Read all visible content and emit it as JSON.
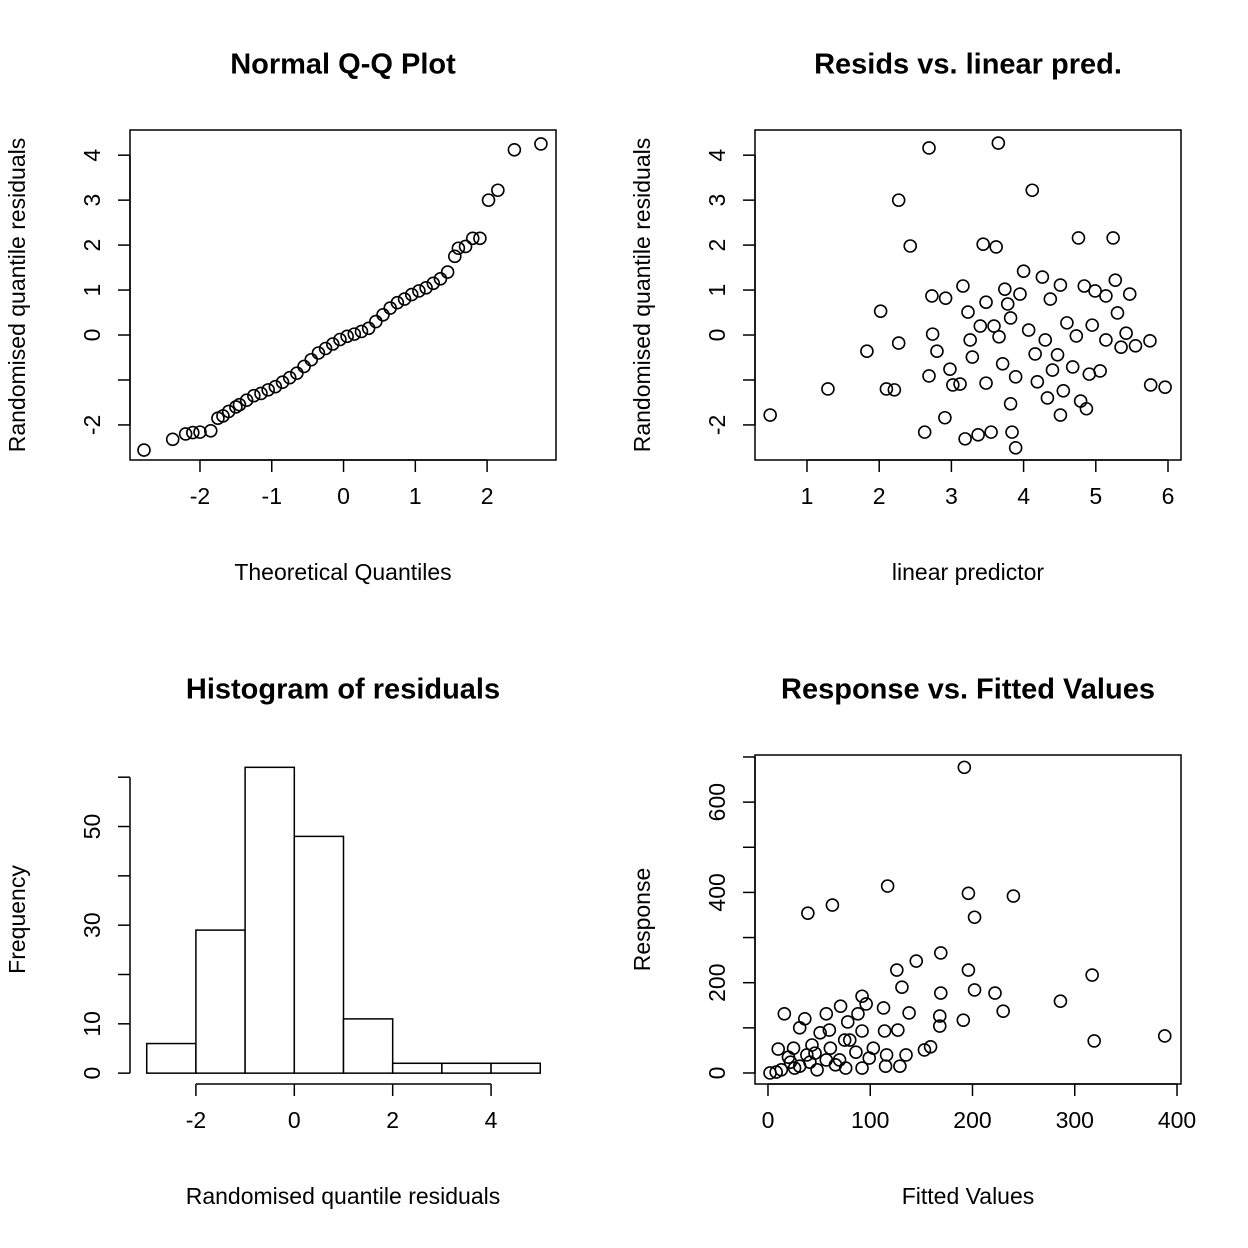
{
  "chart_data": [
    {
      "type": "scatter",
      "title": "Normal Q-Q Plot",
      "x_label": "Theoretical Quantiles",
      "y_label": "Randomised quantile residuals",
      "box": true,
      "x": [
        -2.78,
        -2.38,
        -2.2,
        -2.1,
        -2.0,
        -1.85,
        -1.75,
        -1.68,
        -1.6,
        -1.5,
        -1.45,
        -1.35,
        -1.25,
        -1.15,
        -1.05,
        -0.95,
        -0.85,
        -0.75,
        -0.65,
        -0.55,
        -0.45,
        -0.35,
        -0.25,
        -0.15,
        -0.05,
        0.05,
        0.15,
        0.25,
        0.35,
        0.45,
        0.55,
        0.65,
        0.75,
        0.85,
        0.95,
        1.05,
        1.15,
        1.25,
        1.35,
        1.45,
        1.55,
        1.6,
        1.7,
        1.8,
        1.9,
        2.02,
        2.15,
        2.38,
        2.75
      ],
      "values": [
        -2.56,
        -2.32,
        -2.2,
        -2.17,
        -2.16,
        -2.13,
        -1.85,
        -1.8,
        -1.7,
        -1.6,
        -1.55,
        -1.45,
        -1.35,
        -1.3,
        -1.22,
        -1.15,
        -1.05,
        -0.95,
        -0.85,
        -0.7,
        -0.55,
        -0.4,
        -0.3,
        -0.2,
        -0.1,
        -0.03,
        0.02,
        0.08,
        0.15,
        0.3,
        0.45,
        0.6,
        0.72,
        0.8,
        0.9,
        0.98,
        1.05,
        1.15,
        1.25,
        1.4,
        1.75,
        1.93,
        1.97,
        2.15,
        2.15,
        3.0,
        3.22,
        4.12,
        4.25
      ],
      "xlim": [
        -2.975,
        2.96
      ],
      "ylim": [
        -2.78,
        4.56
      ],
      "xticks": [
        -2,
        -1,
        0,
        1,
        2
      ],
      "yticks": [
        -2,
        {
          "value": -1,
          "label": null
        },
        0,
        1,
        2,
        3,
        4
      ]
    },
    {
      "type": "scatter",
      "title": "Resids vs. linear pred.",
      "x_label": "linear predictor",
      "y_label": "Randomised quantile residuals",
      "box": true,
      "x": [
        0.49,
        1.29,
        1.83,
        2.02,
        2.1,
        2.21,
        2.27,
        2.27,
        2.43,
        2.69,
        2.73,
        2.63,
        2.69,
        2.74,
        2.8,
        2.91,
        2.92,
        2.98,
        3.02,
        3.12,
        3.16,
        3.19,
        3.23,
        3.26,
        3.29,
        3.37,
        3.4,
        3.44,
        3.48,
        3.48,
        3.55,
        3.59,
        3.65,
        3.62,
        3.66,
        3.71,
        3.74,
        3.78,
        3.82,
        3.84,
        3.89,
        3.82,
        3.89,
        3.95,
        4.0,
        4.07,
        4.12,
        4.16,
        4.19,
        4.26,
        4.3,
        4.33,
        4.37,
        4.4,
        4.47,
        4.51,
        4.55,
        4.51,
        4.6,
        4.68,
        4.76,
        4.73,
        4.79,
        4.84,
        4.87,
        4.91,
        4.95,
        4.99,
        5.06,
        5.14,
        5.14,
        5.24,
        5.27,
        5.3,
        5.35,
        5.42,
        5.47,
        5.55,
        5.75,
        5.76,
        5.96
      ],
      "values": [
        -1.78,
        -1.2,
        -0.36,
        0.53,
        -1.2,
        -1.22,
        -0.18,
        3.0,
        1.98,
        4.16,
        0.87,
        -2.16,
        -0.91,
        0.02,
        -0.36,
        -1.84,
        0.82,
        -0.76,
        -1.11,
        -1.09,
        1.09,
        -2.31,
        0.51,
        -0.11,
        -0.49,
        -2.22,
        0.2,
        2.02,
        0.73,
        -1.07,
        -2.16,
        0.2,
        4.27,
        1.96,
        -0.04,
        -0.64,
        1.02,
        0.69,
        0.38,
        -2.16,
        -2.51,
        -1.53,
        -0.93,
        0.91,
        1.42,
        0.11,
        3.22,
        -0.42,
        -1.04,
        1.29,
        -0.11,
        -1.4,
        0.8,
        -0.78,
        -0.44,
        -1.78,
        -1.24,
        1.11,
        0.27,
        -0.71,
        2.16,
        -0.02,
        -1.47,
        1.09,
        -1.64,
        -0.87,
        0.22,
        0.98,
        -0.8,
        0.87,
        -0.11,
        2.16,
        1.22,
        0.49,
        -0.27,
        0.04,
        0.91,
        -0.24,
        -0.13,
        -1.11,
        -1.16
      ],
      "xlim": [
        0.28,
        6.18
      ],
      "ylim": [
        -2.78,
        4.56
      ],
      "xticks": [
        1,
        2,
        3,
        4,
        5,
        6
      ],
      "yticks": [
        -2,
        {
          "value": -1,
          "label": null
        },
        0,
        1,
        2,
        3,
        4
      ]
    },
    {
      "type": "histogram",
      "title": "Histogram of residuals",
      "x_label": "Randomised quantile residuals",
      "y_label": "Frequency",
      "box": false,
      "bins": [
        -3,
        -2,
        -1,
        0,
        1,
        2,
        3,
        4,
        5
      ],
      "values": [
        6,
        29,
        62,
        48,
        11,
        2,
        2,
        2
      ],
      "xlim": [
        -3.34,
        5.32
      ],
      "ylim": [
        -2.2,
        64.5
      ],
      "xticks": [
        -2,
        0,
        2,
        4
      ],
      "yticks": [
        0,
        10,
        {
          "value": 20,
          "label": null
        },
        30,
        {
          "value": 40,
          "label": null
        },
        50,
        {
          "value": 60,
          "label": null
        }
      ]
    },
    {
      "type": "scatter",
      "title": "Response vs. Fitted Values",
      "x_label": "Fitted Values",
      "y_label": "Response",
      "box": true,
      "x": [
        192,
        117,
        196,
        240,
        39,
        63,
        202,
        169,
        145,
        126,
        196,
        317,
        286,
        202,
        222,
        169,
        131,
        230,
        92,
        96,
        71,
        191,
        168,
        168,
        138,
        113,
        88,
        57,
        16,
        388,
        319,
        127,
        114,
        92,
        78,
        60,
        31,
        36,
        10,
        159,
        153,
        135,
        116,
        99,
        80,
        51,
        43,
        25,
        20,
        70,
        129,
        92,
        115,
        41,
        48,
        26,
        13,
        2,
        8,
        31,
        57,
        86,
        76,
        61,
        38,
        22,
        46,
        66,
        103,
        75
      ],
      "values": [
        677,
        414,
        398,
        392,
        354,
        372,
        345,
        266,
        248,
        228,
        228,
        217,
        159,
        184,
        177,
        177,
        190,
        137,
        170,
        153,
        148,
        117,
        126,
        104,
        133,
        144,
        131,
        131,
        131,
        82,
        71,
        95,
        93,
        93,
        113,
        95,
        100,
        120,
        53,
        58,
        51,
        40,
        40,
        33,
        73,
        89,
        62,
        55,
        35,
        29,
        15,
        11,
        15,
        24,
        7,
        11,
        7,
        0,
        2,
        15,
        29,
        46,
        11,
        55,
        40,
        24,
        44,
        18,
        55,
        73
      ],
      "xlim": [
        -12.7,
        403.9
      ],
      "ylim": [
        -24.4,
        704.4
      ],
      "xticks": [
        0,
        100,
        200,
        300,
        400
      ],
      "yticks": [
        0,
        {
          "value": 100,
          "label": null
        },
        200,
        {
          "value": 300,
          "label": null
        },
        400,
        {
          "value": 500,
          "label": null
        },
        600,
        {
          "value": 700,
          "label": null
        }
      ]
    }
  ]
}
